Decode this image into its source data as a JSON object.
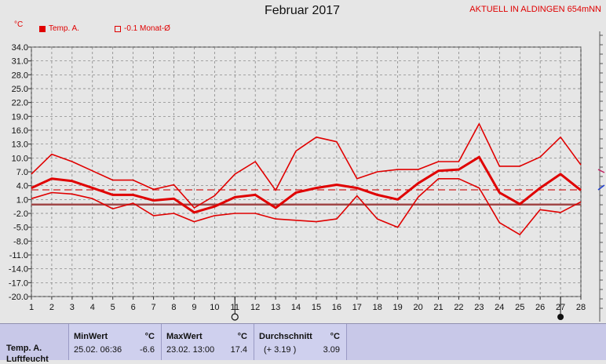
{
  "title": "Februar 2017",
  "station": "AKTUELL IN ALDINGEN 654mNN",
  "unit": "°C",
  "legend": {
    "series_label": "Temp. A.",
    "avg_label": "-0.1 Monat-Ø"
  },
  "colors": {
    "series": "#e00000",
    "avg": "#c04040",
    "grid": "#7a7a7a",
    "background": "#e6e6e6",
    "panel": "#c8c8e8"
  },
  "chart_data": {
    "type": "line",
    "title": "Februar 2017",
    "xlabel": "",
    "ylabel": "°C",
    "x": [
      1,
      2,
      3,
      4,
      5,
      6,
      7,
      8,
      9,
      10,
      11,
      12,
      13,
      14,
      15,
      16,
      17,
      18,
      19,
      20,
      21,
      22,
      23,
      24,
      25,
      26,
      27,
      28
    ],
    "ylim": [
      -20,
      34
    ],
    "yticks": [
      34.0,
      31.0,
      28.0,
      25.0,
      22.0,
      19.0,
      16.0,
      13.0,
      10.0,
      7.0,
      4.0,
      1.0,
      -2.0,
      -5.0,
      -8.0,
      -11.0,
      -14.0,
      -17.0,
      -20.0
    ],
    "ytick_labels": [
      "34.0",
      "31.0",
      "28.0",
      "25.0",
      "22.0",
      "19.0",
      "16.0",
      "13.0",
      "10.0",
      "7.0",
      "4.0",
      "1.0",
      "-2.0",
      "-5.0",
      "-8.0",
      "-11.0",
      "-14.0",
      "-17.0",
      "-20.0"
    ],
    "grid": true,
    "series": [
      {
        "role": "max",
        "values": [
          6.5,
          10.8,
          9.2,
          7.2,
          5.2,
          5.2,
          3.2,
          4.2,
          -0.8,
          1.8,
          6.5,
          9.2,
          3.0,
          11.5,
          14.5,
          13.5,
          5.5,
          7.0,
          7.5,
          7.5,
          9.2,
          9.2,
          17.4,
          8.2,
          8.2,
          10.2,
          14.5,
          8.5
        ]
      },
      {
        "role": "mean",
        "values": [
          3.5,
          5.5,
          5.0,
          3.5,
          2.0,
          2.0,
          0.8,
          1.2,
          -1.8,
          -0.5,
          1.5,
          2.0,
          -0.8,
          2.5,
          3.5,
          4.2,
          3.5,
          2.0,
          1.0,
          4.5,
          7.2,
          7.5,
          10.2,
          2.5,
          0.0,
          3.5,
          6.5,
          3.0
        ]
      },
      {
        "role": "min",
        "values": [
          1.2,
          2.5,
          2.2,
          1.2,
          -1.0,
          0.2,
          -2.5,
          -2.0,
          -3.8,
          -2.5,
          -2.0,
          -2.0,
          -3.2,
          -3.5,
          -3.8,
          -3.2,
          1.8,
          -3.2,
          -5.0,
          1.5,
          5.5,
          5.5,
          3.5,
          -4.0,
          -6.6,
          -1.2,
          -1.8,
          0.5
        ]
      }
    ],
    "reference_lines": [
      {
        "style": "dashed",
        "value": 3.1
      },
      {
        "style": "solid",
        "value": -0.1
      }
    ],
    "markers": {
      "open_circle_day": 11,
      "filled_circle_day": 27
    }
  },
  "panel": {
    "row_label": "Temp. A.",
    "row_label_2": "Luftfeucht",
    "min_header": "MinWert",
    "min_unit": "°C",
    "min_time": "25.02.  06:36",
    "min_value": "-6.6",
    "max_header": "MaxWert",
    "max_unit": "°C",
    "max_time": "23.02.  13:00",
    "max_value": "17.4",
    "avg_header": "Durchschnitt",
    "avg_unit": "°C",
    "avg_delta": "(+ 3.19 )",
    "avg_value": "3.09"
  }
}
